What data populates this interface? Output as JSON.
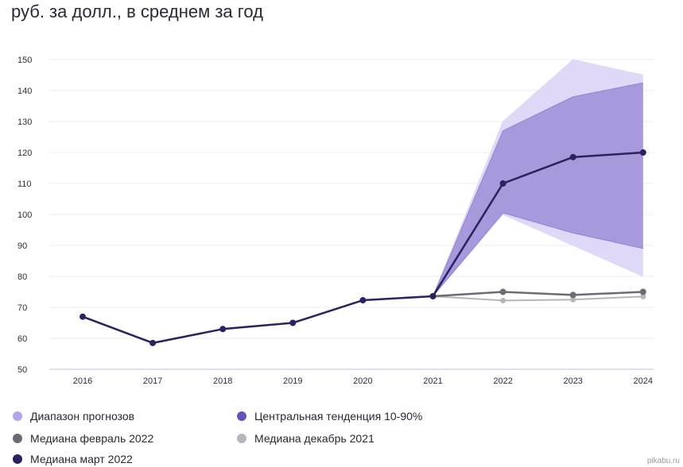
{
  "header": {
    "title": "руб. за долл., в среднем за год"
  },
  "watermark": "pikabu.ru",
  "colors": {
    "range_band": "#e0d8f7",
    "central_band": "#a898dc",
    "march_median": "#2a2360",
    "feb_median": "#6b6b73",
    "dec_median": "#b5b5bd"
  },
  "chart_data": {
    "type": "line",
    "title": "руб. за долл., в среднем за год",
    "xlabel": "",
    "ylabel": "",
    "x": [
      "2016",
      "2017",
      "2018",
      "2019",
      "2020",
      "2021",
      "2022",
      "2023",
      "2024"
    ],
    "ylim": [
      50,
      150
    ],
    "yticks": [
      50,
      60,
      70,
      80,
      90,
      100,
      110,
      120,
      130,
      140,
      150
    ],
    "grid": true,
    "legend_position": "bottom",
    "series": [
      {
        "key": "range",
        "name": "Диапазон прогнозов",
        "kind": "band",
        "x": [
          "2021",
          "2022",
          "2023",
          "2024"
        ],
        "upper": [
          73.6,
          130,
          150,
          145
        ],
        "lower": [
          73.6,
          100,
          90,
          80
        ]
      },
      {
        "key": "central",
        "name": "Центральная тенденция 10-90%",
        "kind": "band",
        "x": [
          "2021",
          "2022",
          "2023",
          "2024"
        ],
        "upper": [
          73.6,
          127,
          138,
          142.5
        ],
        "lower": [
          73.6,
          100.5,
          94,
          89
        ]
      },
      {
        "key": "dec",
        "name": "Медиана декабрь 2021",
        "kind": "line",
        "x": [
          "2021",
          "2022",
          "2023",
          "2024"
        ],
        "values": [
          73.6,
          72.2,
          72.5,
          73.5
        ]
      },
      {
        "key": "feb",
        "name": "Медиана февраль 2022",
        "kind": "line",
        "x": [
          "2021",
          "2022",
          "2023",
          "2024"
        ],
        "values": [
          73.6,
          75,
          74,
          75
        ]
      },
      {
        "key": "march",
        "name": "Медиана март 2022",
        "kind": "line",
        "x": [
          "2016",
          "2017",
          "2018",
          "2019",
          "2020",
          "2021",
          "2022",
          "2023",
          "2024"
        ],
        "values": [
          67,
          58.5,
          63,
          65,
          72.3,
          73.6,
          110,
          118.5,
          120
        ]
      }
    ]
  },
  "legend": {
    "items": [
      {
        "label": "Диапазон прогнозов",
        "color": "#b4a6e6"
      },
      {
        "label": "Центральная тенденция 10-90%",
        "color": "#6a4fbf"
      },
      {
        "label": "Медиана февраль 2022",
        "color": "#6b6b73"
      },
      {
        "label": "Медиана декабрь 2021",
        "color": "#b5b5bd"
      },
      {
        "label": "Медиана март 2022",
        "color": "#2a2360"
      }
    ]
  }
}
